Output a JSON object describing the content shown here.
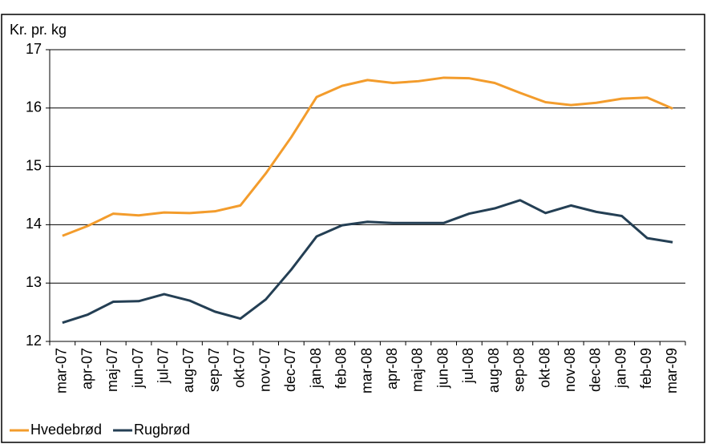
{
  "chart_data": {
    "type": "line",
    "y_label": "Kr. pr. kg",
    "categories": [
      "mar-07",
      "apr-07",
      "maj-07",
      "jun-07",
      "jul-07",
      "aug-07",
      "sep-07",
      "okt-07",
      "nov-07",
      "dec-07",
      "jan-08",
      "feb-08",
      "mar-08",
      "apr-08",
      "maj-08",
      "jun-08",
      "jul-08",
      "aug-08",
      "sep-08",
      "okt-08",
      "nov-08",
      "dec-08",
      "jan-09",
      "feb-09",
      "mar-09"
    ],
    "series": [
      {
        "name": "Hvedebrød",
        "color": "#f39c2c",
        "values": [
          13.81,
          13.98,
          14.19,
          14.16,
          14.21,
          14.2,
          14.23,
          14.33,
          14.88,
          15.5,
          16.19,
          16.38,
          16.48,
          16.43,
          16.46,
          16.52,
          16.51,
          16.43,
          16.26,
          16.1,
          16.05,
          16.09,
          16.16,
          16.18,
          15.99
        ]
      },
      {
        "name": "Rugbrød",
        "color": "#243f54",
        "values": [
          12.32,
          12.46,
          12.68,
          12.69,
          12.81,
          12.7,
          12.51,
          12.39,
          12.72,
          13.23,
          13.8,
          13.99,
          14.05,
          14.03,
          14.03,
          14.03,
          14.19,
          14.28,
          14.42,
          14.2,
          14.33,
          14.22,
          14.15,
          13.77,
          13.7
        ]
      }
    ],
    "ylim": [
      12,
      17
    ],
    "yticks": [
      12,
      13,
      14,
      15,
      16,
      17
    ],
    "grid": true,
    "legend": "bottom"
  }
}
